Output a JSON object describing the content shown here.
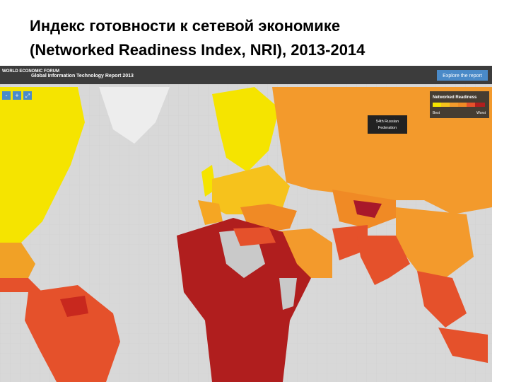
{
  "title": {
    "line1": "Индекс готовности к сетевой экономике",
    "line2": "(Networked Readiness Index, NRI), 2013-2014"
  },
  "header": {
    "logo": "WORLD ECONOMIC FORUM",
    "title": "Global Information Technology Report 2013",
    "button": "Explore the report"
  },
  "controls": [
    "-",
    "+",
    "⤢"
  ],
  "legend": {
    "title": "Networked Readiness",
    "best": "Best",
    "worst": "Worst"
  },
  "tooltip": {
    "line1": "54th Russian",
    "line2": "Federation"
  }
}
